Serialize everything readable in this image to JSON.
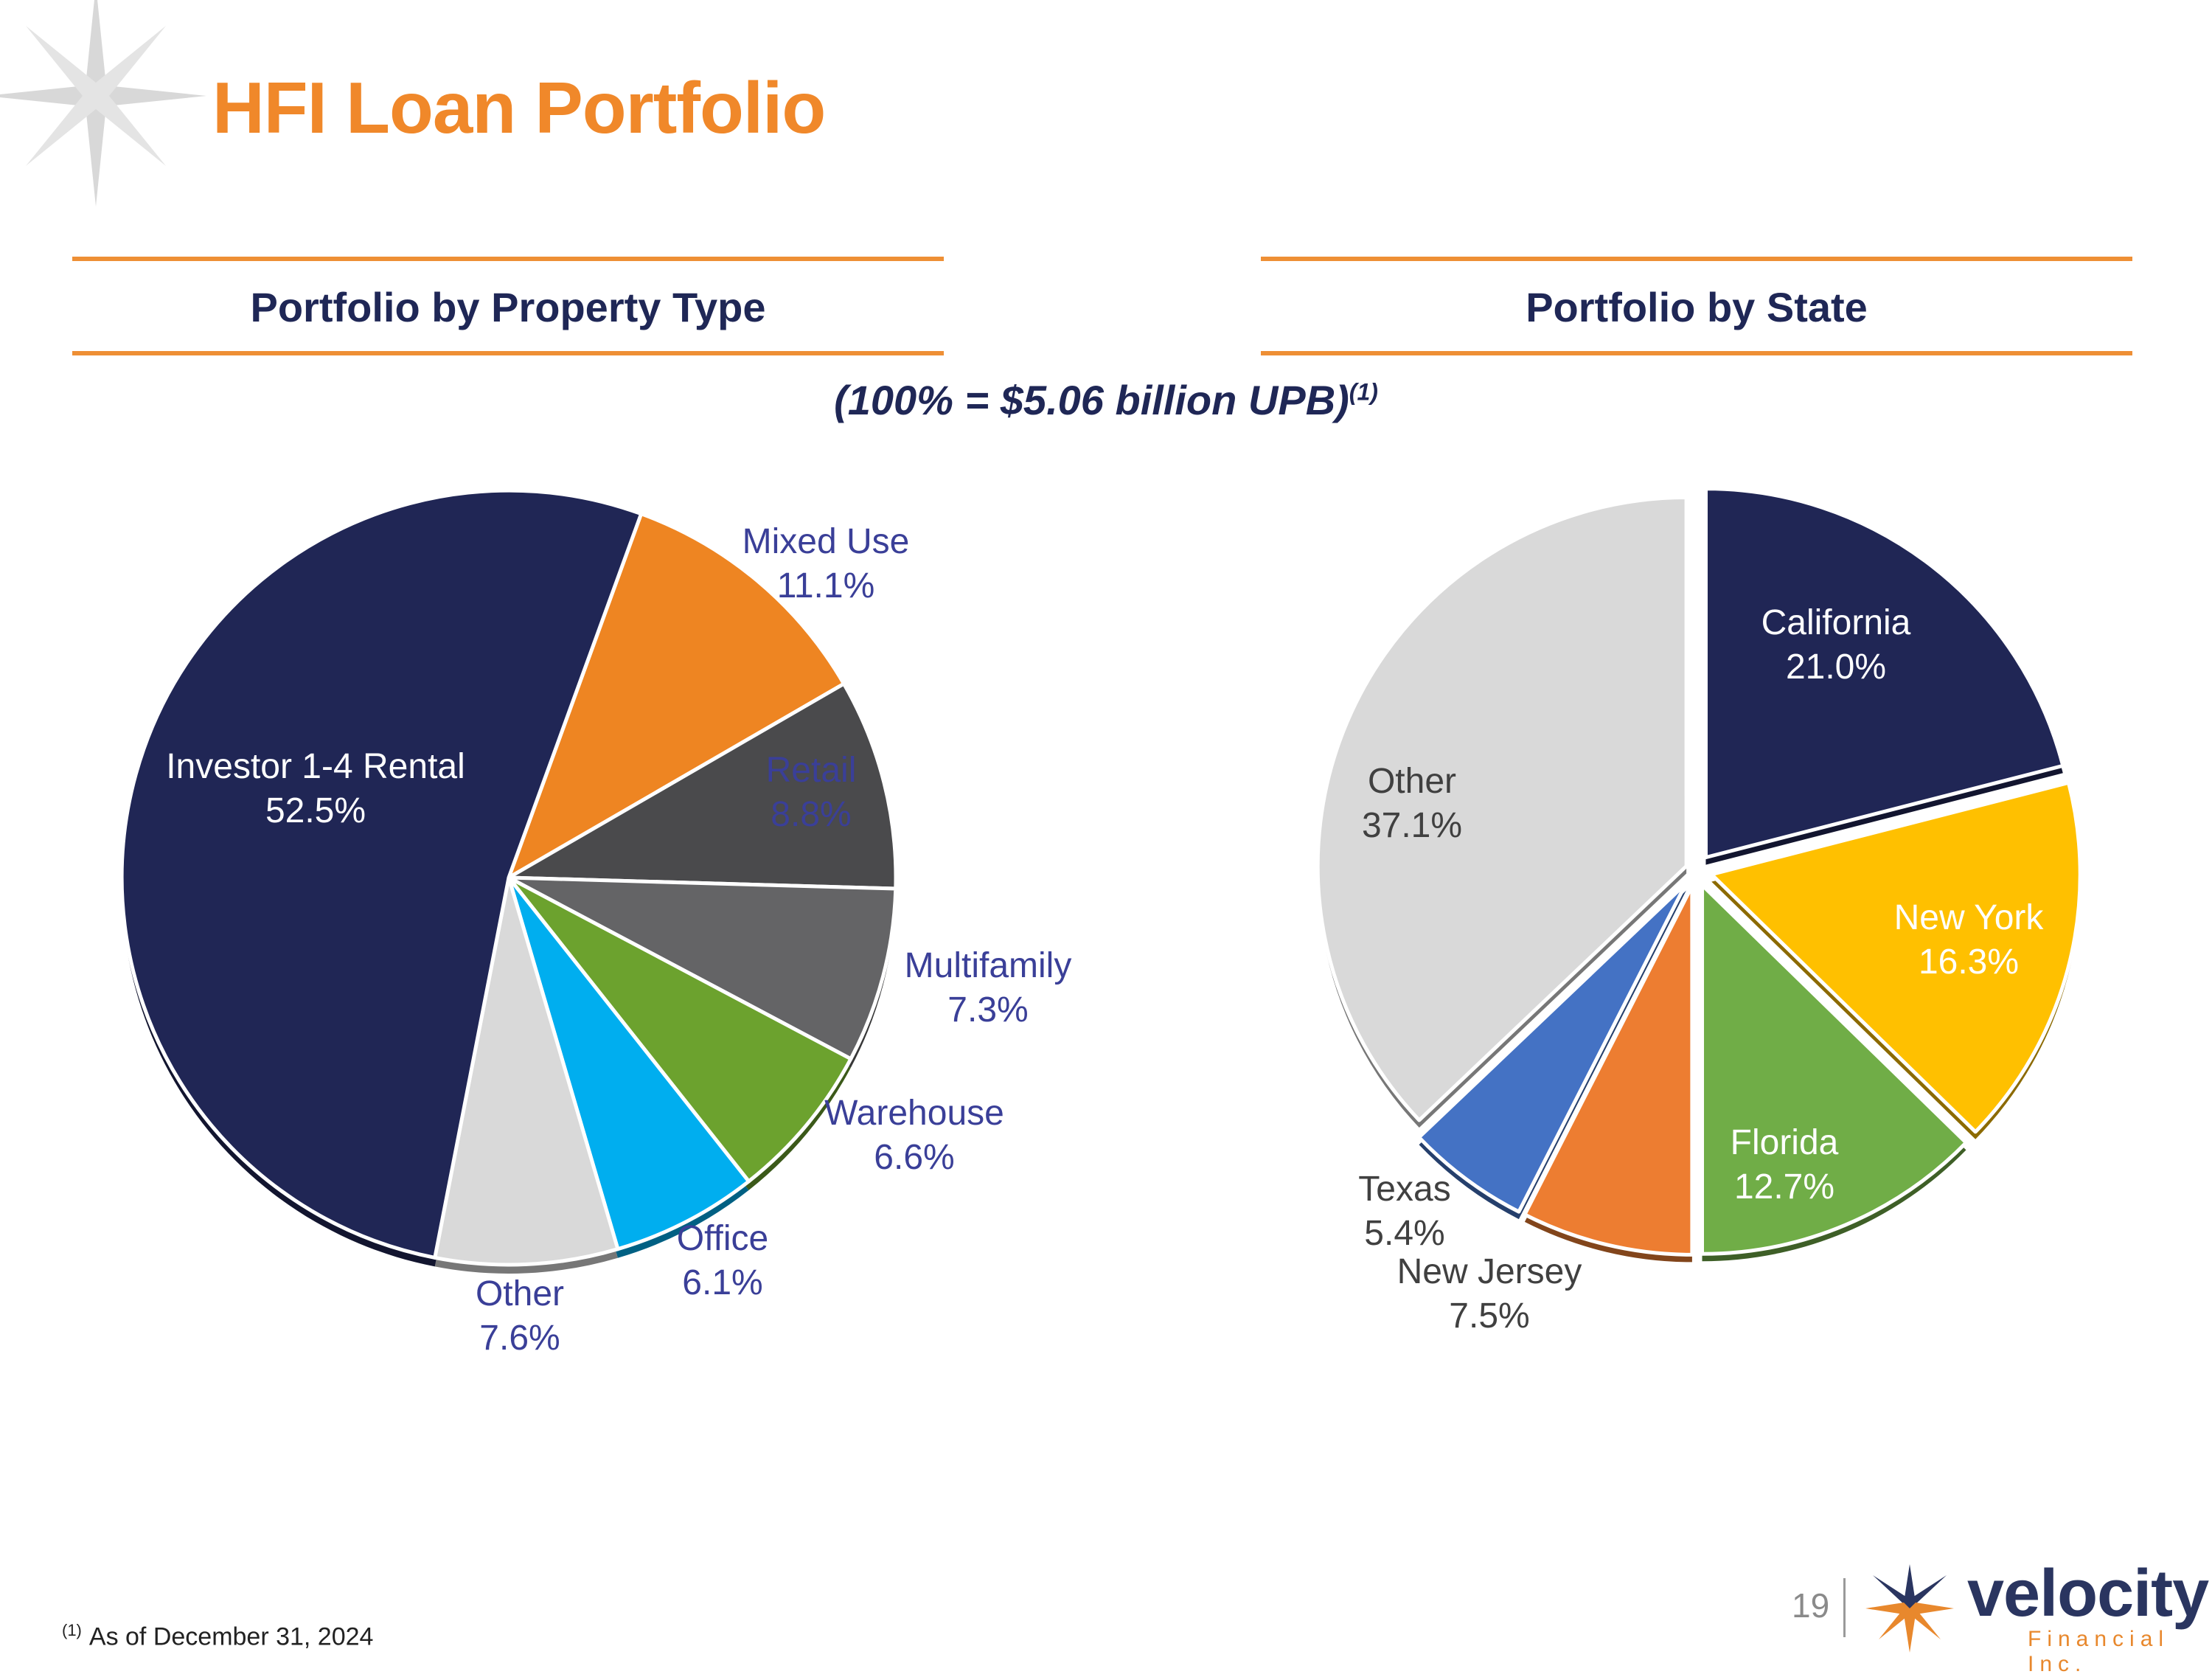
{
  "title": "HFI Loan Portfolio",
  "left_header": "Portfolio by Property Type",
  "right_header": "Portfolio by State",
  "total_note": "(100% = $5.06 billion UPB)",
  "total_note_ref": "(1)",
  "footnote": {
    "marker": "(1)",
    "text": "As of December 31, 2024"
  },
  "page_number": "19",
  "logo": {
    "word": "velocity",
    "sub": "Financial Inc."
  },
  "colors": {
    "accent": "#F0882A",
    "navy": "#1F2756",
    "label_blue": "#3A3F98"
  },
  "chart_data": [
    {
      "type": "pie",
      "title": "Portfolio by Property Type",
      "start_angle_deg": 20,
      "direction": "clockwise",
      "slices": [
        {
          "label": "Mixed Use",
          "pct": "11.1%",
          "value": 11.1,
          "color": "#EE8522"
        },
        {
          "label": "Retail",
          "pct": "8.8%",
          "value": 8.8,
          "color": "#4A4A4C"
        },
        {
          "label": "Multifamily",
          "pct": "7.3%",
          "value": 7.3,
          "color": "#646466"
        },
        {
          "label": "Warehouse",
          "pct": "6.6%",
          "value": 6.6,
          "color": "#6CA22E"
        },
        {
          "label": "Office",
          "pct": "6.1%",
          "value": 6.1,
          "color": "#00AEEF"
        },
        {
          "label": "Other",
          "pct": "7.6%",
          "value": 7.6,
          "color": "#D9D9D9"
        },
        {
          "label": "Investor 1-4 Rental",
          "pct": "52.5%",
          "value": 52.5,
          "color": "#202655"
        }
      ]
    },
    {
      "type": "pie",
      "title": "Portfolio by State",
      "start_angle_deg": 0,
      "direction": "clockwise",
      "slices": [
        {
          "label": "California",
          "pct": "21.0%",
          "value": 21.0,
          "color": "#202655"
        },
        {
          "label": "New York",
          "pct": "16.3%",
          "value": 16.3,
          "color": "#FFC000"
        },
        {
          "label": "Florida",
          "pct": "12.7%",
          "value": 12.7,
          "color": "#70AD47"
        },
        {
          "label": "New Jersey",
          "pct": "7.5%",
          "value": 7.5,
          "color": "#ED7D31"
        },
        {
          "label": "Texas",
          "pct": "5.4%",
          "value": 5.4,
          "color": "#4472C4"
        },
        {
          "label": "Other",
          "pct": "37.1%",
          "value": 37.1,
          "color": "#D9D9D9"
        }
      ]
    }
  ]
}
